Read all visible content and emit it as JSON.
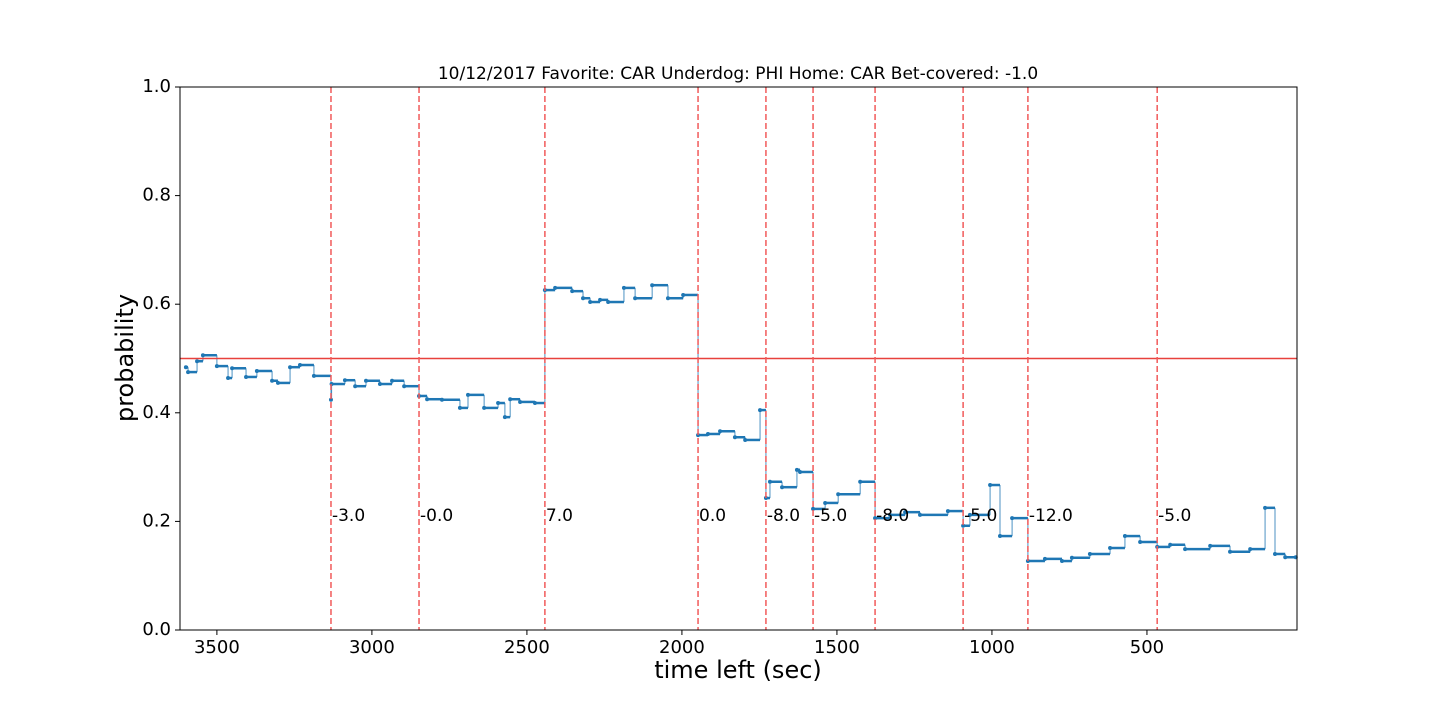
{
  "chart_data": {
    "type": "step",
    "title": "10/12/2017 Favorite: CAR Underdog: PHI Home: CAR Bet-covered: -1.0",
    "x_label": "time left (sec)",
    "y_label": "probability",
    "xlim": [
      3619,
      16
    ],
    "ylim": [
      0,
      1
    ],
    "xticks": [
      3500,
      3000,
      2500,
      2000,
      1500,
      1000,
      500
    ],
    "yticks": [
      {
        "value": 0,
        "label": "0.0"
      },
      {
        "value": 0.2,
        "label": "0.2"
      },
      {
        "value": 0.4,
        "label": "0.4"
      },
      {
        "value": 0.6,
        "label": "0.6"
      },
      {
        "value": 0.8,
        "label": "0.8"
      },
      {
        "value": 1,
        "label": "1.0"
      }
    ],
    "series": [
      {
        "color": "#1f77b4",
        "x": [
          3600,
          3593,
          3564,
          3545,
          3500,
          3464,
          3451,
          3406,
          3371,
          3322,
          3303,
          3264,
          3232,
          3187,
          3132,
          3130,
          3087,
          3054,
          3019,
          2974,
          2935,
          2896,
          2848,
          2822,
          2774,
          2716,
          2690,
          2638,
          2593,
          2571,
          2554,
          2522,
          2474,
          2442,
          2409,
          2354,
          2319,
          2296,
          2264,
          2238,
          2187,
          2151,
          2096,
          2045,
          1996,
          1948,
          1916,
          1877,
          1829,
          1796,
          1748,
          1729,
          1716,
          1677,
          1629,
          1619,
          1577,
          1538,
          1496,
          1425,
          1377,
          1329,
          1280,
          1232,
          1142,
          1093,
          1071,
          1006,
          974,
          935,
          884,
          829,
          774,
          742,
          684,
          619,
          571,
          522,
          467,
          425,
          377,
          296,
          232,
          167,
          119,
          87,
          54,
          20
        ],
        "values": [
          0.484,
          0.475,
          0.495,
          0.506,
          0.486,
          0.464,
          0.482,
          0.466,
          0.477,
          0.459,
          0.455,
          0.484,
          0.488,
          0.468,
          0.424,
          0.453,
          0.46,
          0.449,
          0.459,
          0.453,
          0.459,
          0.449,
          0.431,
          0.425,
          0.424,
          0.409,
          0.433,
          0.409,
          0.418,
          0.392,
          0.425,
          0.42,
          0.418,
          0.626,
          0.63,
          0.624,
          0.611,
          0.604,
          0.608,
          0.604,
          0.63,
          0.611,
          0.635,
          0.611,
          0.617,
          0.359,
          0.361,
          0.366,
          0.355,
          0.35,
          0.405,
          0.243,
          0.273,
          0.263,
          0.295,
          0.291,
          0.223,
          0.234,
          0.25,
          0.273,
          0.206,
          0.212,
          0.217,
          0.212,
          0.219,
          0.192,
          0.212,
          0.267,
          0.173,
          0.206,
          0.127,
          0.131,
          0.127,
          0.133,
          0.14,
          0.151,
          0.173,
          0.162,
          0.153,
          0.157,
          0.149,
          0.155,
          0.144,
          0.149,
          0.225,
          0.14,
          0.134,
          0.134
        ]
      }
    ],
    "hline": {
      "y": 0.5,
      "color": "#e8413c"
    },
    "vlines": {
      "color": "#f15a5a",
      "x": [
        3132,
        2848,
        2442,
        1948,
        1729,
        1577,
        1377,
        1093,
        884,
        467
      ],
      "labels": [
        "-3.0",
        "-0.0",
        "7.0",
        "0.0",
        "-8.0",
        "-5.0",
        "-8.0",
        "-5.0",
        "-12.0",
        "-5.0"
      ]
    }
  }
}
